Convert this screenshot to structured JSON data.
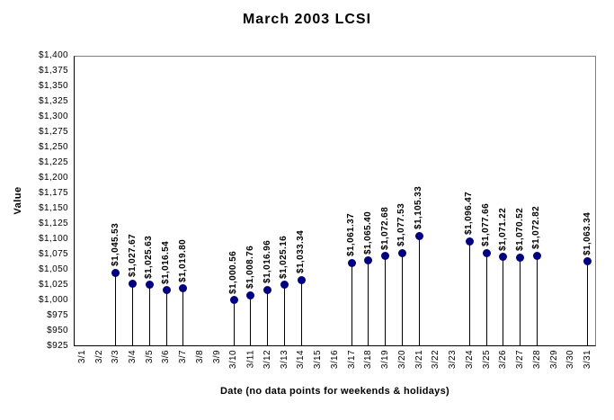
{
  "title": "March 2003 LCSI",
  "chart_data": {
    "type": "scatter",
    "variant": "lollipop-stem",
    "title": "March 2003 LCSI",
    "xlabel": "Date (no data points for weekends & holidays)",
    "ylabel": "Value",
    "ylim": [
      925,
      1400
    ],
    "ytick_step": 25,
    "ytick_prefix": "$",
    "grid": false,
    "categories": [
      "3/1",
      "3/2",
      "3/3",
      "3/4",
      "3/5",
      "3/6",
      "3/7",
      "3/8",
      "3/9",
      "3/10",
      "3/11",
      "3/12",
      "3/13",
      "3/14",
      "3/15",
      "3/16",
      "3/17",
      "3/18",
      "3/19",
      "3/20",
      "3/21",
      "3/22",
      "3/23",
      "3/24",
      "3/25",
      "3/26",
      "3/27",
      "3/28",
      "3/29",
      "3/30",
      "3/31"
    ],
    "points": [
      {
        "x": "3/3",
        "value": 1045.53,
        "label": "$1,045.53"
      },
      {
        "x": "3/4",
        "value": 1027.67,
        "label": "$1,027.67"
      },
      {
        "x": "3/5",
        "value": 1025.63,
        "label": "$1,025.63"
      },
      {
        "x": "3/6",
        "value": 1016.54,
        "label": "$1,016.54"
      },
      {
        "x": "3/7",
        "value": 1019.8,
        "label": "$1,019.80"
      },
      {
        "x": "3/10",
        "value": 1000.56,
        "label": "$1,000.56"
      },
      {
        "x": "3/11",
        "value": 1008.76,
        "label": "$1,008.76"
      },
      {
        "x": "3/12",
        "value": 1016.96,
        "label": "$1,016.96"
      },
      {
        "x": "3/13",
        "value": 1025.16,
        "label": "$1,025.16"
      },
      {
        "x": "3/14",
        "value": 1033.34,
        "label": "$1,033.34"
      },
      {
        "x": "3/17",
        "value": 1061.37,
        "label": "$1,061.37"
      },
      {
        "x": "3/18",
        "value": 1065.4,
        "label": "$1,065.40"
      },
      {
        "x": "3/19",
        "value": 1072.68,
        "label": "$1,072.68"
      },
      {
        "x": "3/20",
        "value": 1077.53,
        "label": "$1,077.53"
      },
      {
        "x": "3/21",
        "value": 1105.33,
        "label": "$1,105.33"
      },
      {
        "x": "3/24",
        "value": 1096.47,
        "label": "$1,096.47"
      },
      {
        "x": "3/25",
        "value": 1077.66,
        "label": "$1,077.66"
      },
      {
        "x": "3/26",
        "value": 1071.22,
        "label": "$1,071.22"
      },
      {
        "x": "3/27",
        "value": 1070.52,
        "label": "$1,070.52"
      },
      {
        "x": "3/28",
        "value": 1072.82,
        "label": "$1,072.82"
      },
      {
        "x": "3/31",
        "value": 1063.34,
        "label": "$1,063.34"
      }
    ],
    "colors": {
      "marker": "#000080",
      "stem": "#000000",
      "plot_border": "#808080",
      "axis_line": "#000000",
      "text": "#000000",
      "background": "#ffffff"
    }
  }
}
